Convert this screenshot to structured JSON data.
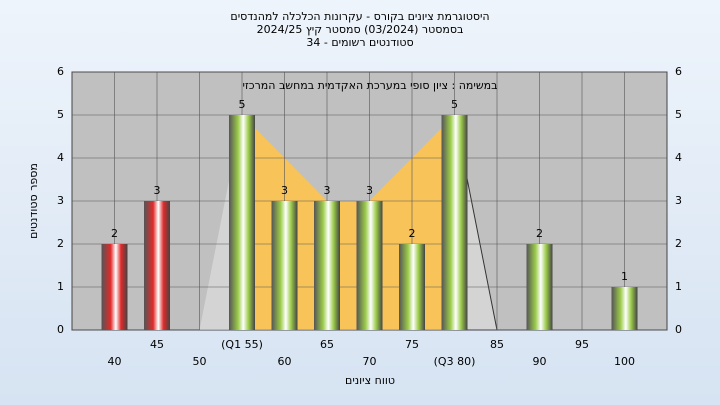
{
  "chart_data": {
    "type": "bar",
    "title": [
      "היסטוגרמת ציונים בקורס - עקרונות הכלכלה למהנדסים",
      "בסמסטר  (03/2024)  סמסטר קיץ 2024/25",
      "סטודנטים רשומים - 34"
    ],
    "annotation": "במשימה : ציון סופי במערכת האקדמית במחשב המרכזי",
    "x_label": "טווח ציונים",
    "y_label": "מספר סטודנטים",
    "categories": [
      "40",
      "45",
      "50",
      "(Q1 55)",
      "60",
      "65",
      "70",
      "75",
      "(Q3 80)",
      "85",
      "90",
      "95",
      "100"
    ],
    "values": [
      2,
      3,
      0,
      5,
      3,
      3,
      3,
      2,
      5,
      0,
      2,
      0,
      1
    ],
    "colors": [
      "#e02a2a",
      "#e02a2a",
      "#9ccc4a",
      "#9ccc4a",
      "#9ccc4a",
      "#9ccc4a",
      "#9ccc4a",
      "#9ccc4a",
      "#9ccc4a",
      "#9ccc4a",
      "#9ccc4a",
      "#9ccc4a",
      "#9ccc4a"
    ],
    "ylim": [
      0,
      6
    ],
    "yticks": [
      0,
      1,
      2,
      3,
      4,
      5,
      6
    ],
    "grid": true
  }
}
